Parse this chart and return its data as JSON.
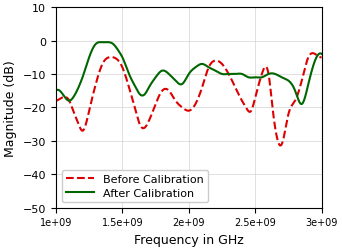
{
  "title": "",
  "xlabel": "Frequency in GHz",
  "ylabel": "Magnitude (dB)",
  "xlim": [
    1000000000.0,
    3000000000.0
  ],
  "ylim": [
    -50,
    10
  ],
  "xticks": [
    1000000000.0,
    1500000000.0,
    2000000000.0,
    2500000000.0,
    3000000000.0
  ],
  "xtick_labels": [
    "1e+09",
    "1.5e+09",
    "2e+09",
    "2.5e+09",
    "3e+09"
  ],
  "yticks": [
    -50,
    -40,
    -30,
    -20,
    -10,
    0,
    10
  ],
  "before_color": "#dd0000",
  "after_color": "#006600",
  "legend_labels": [
    "Before Calibration",
    "After Calibration"
  ],
  "before_x": [
    1.0,
    1.05,
    1.1,
    1.13,
    1.17,
    1.2,
    1.25,
    1.3,
    1.35,
    1.4,
    1.43,
    1.47,
    1.5,
    1.55,
    1.6,
    1.63,
    1.67,
    1.7,
    1.75,
    1.8,
    1.85,
    1.9,
    1.95,
    2.0,
    2.05,
    2.1,
    2.15,
    2.2,
    2.25,
    2.3,
    2.35,
    2.4,
    2.43,
    2.47,
    2.5,
    2.55,
    2.6,
    2.63,
    2.67,
    2.7,
    2.75,
    2.8,
    2.85,
    2.9,
    2.95,
    3.0
  ],
  "before_y": [
    -18,
    -17,
    -18,
    -21,
    -25,
    -27,
    -21,
    -13,
    -7,
    -5,
    -5,
    -6,
    -8,
    -14,
    -21,
    -25,
    -26,
    -24,
    -19,
    -15,
    -15,
    -18,
    -20,
    -21,
    -19,
    -14,
    -8,
    -6,
    -7,
    -10,
    -14,
    -18,
    -20,
    -21,
    -17,
    -10,
    -10,
    -20,
    -30,
    -31,
    -22,
    -18,
    -12,
    -5,
    -4,
    -5
  ],
  "after_x": [
    1.0,
    1.05,
    1.1,
    1.13,
    1.17,
    1.2,
    1.25,
    1.3,
    1.35,
    1.4,
    1.43,
    1.47,
    1.5,
    1.55,
    1.6,
    1.63,
    1.67,
    1.7,
    1.75,
    1.8,
    1.85,
    1.9,
    1.95,
    2.0,
    2.05,
    2.1,
    2.15,
    2.2,
    2.25,
    2.3,
    2.35,
    2.4,
    2.45,
    2.5,
    2.55,
    2.6,
    2.65,
    2.7,
    2.75,
    2.8,
    2.85,
    2.9,
    2.95,
    3.0
  ],
  "after_y": [
    -15,
    -16,
    -18,
    -17,
    -14,
    -11,
    -5,
    -1,
    -0.5,
    -0.5,
    -1,
    -3,
    -5,
    -10,
    -14,
    -16,
    -16,
    -14,
    -11,
    -9,
    -10,
    -12,
    -13,
    -10,
    -8,
    -7,
    -8,
    -9,
    -10,
    -10,
    -10,
    -10,
    -11,
    -11,
    -11,
    -10,
    -10,
    -11,
    -12,
    -15,
    -19,
    -13,
    -6,
    -4
  ]
}
